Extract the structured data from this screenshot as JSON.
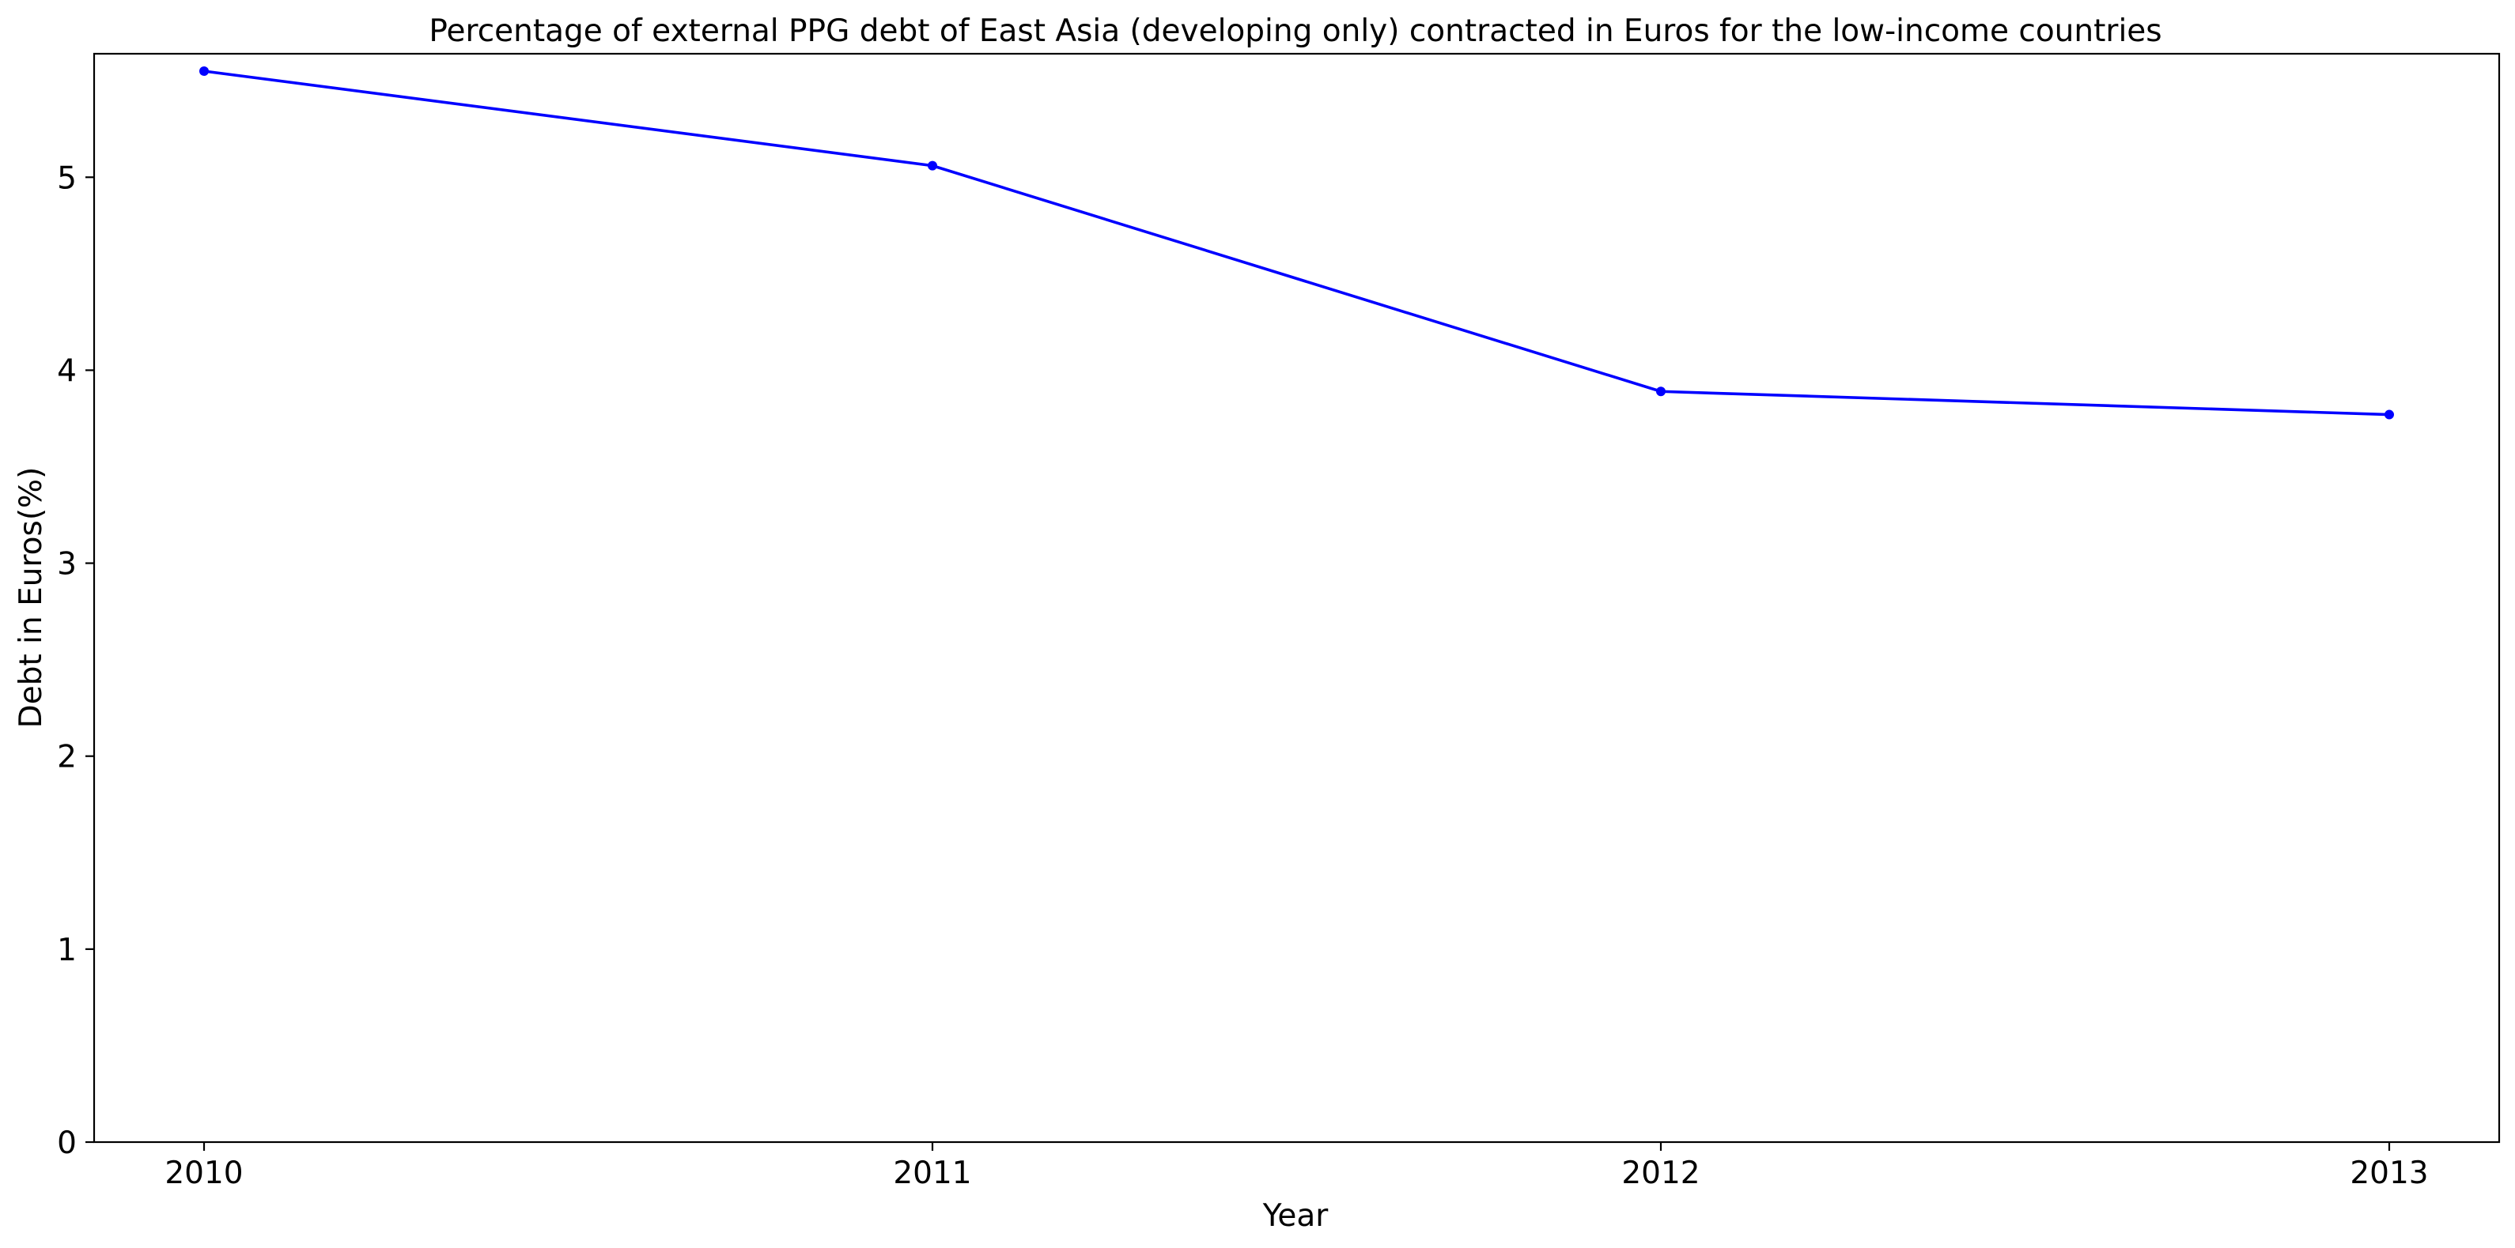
{
  "chart_data": {
    "type": "line",
    "title": "Percentage of external PPG debt of East Asia (developing only) contracted in Euros for the low-income countries",
    "xlabel": "Year",
    "ylabel": "Debt in Euros(%)",
    "categories": [
      "2010",
      "2011",
      "2012",
      "2013"
    ],
    "series": [
      {
        "values": [
          5.55,
          5.06,
          3.89,
          3.77
        ],
        "color": "#0000ff",
        "marker": "circle"
      }
    ],
    "ylim": [
      0,
      5.64
    ],
    "yticks": [
      0,
      1,
      2,
      3,
      4,
      5
    ],
    "ytick_labels": [
      "0",
      "1",
      "2",
      "3",
      "4",
      "5"
    ],
    "grid": false,
    "legend": "none"
  }
}
